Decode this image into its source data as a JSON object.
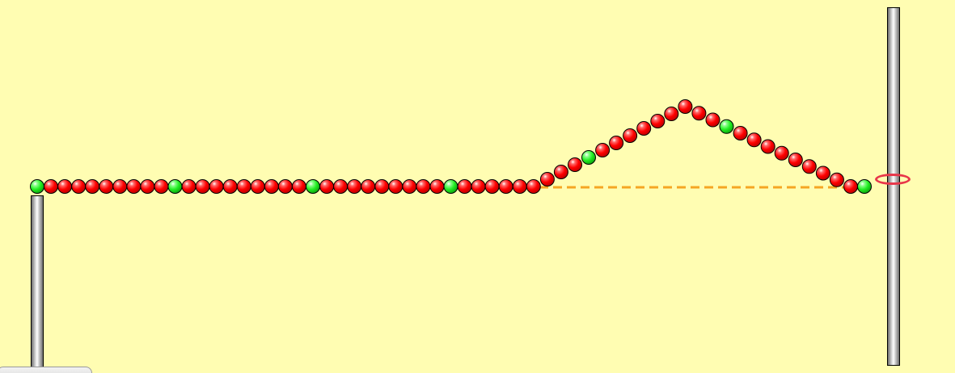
{
  "simulation": {
    "bead_count": 61,
    "highlight_every": 10,
    "colors": {
      "background": "#fffdb2",
      "bead": "#ff0000",
      "bead_highlight": "#22ee22",
      "equilibrium_line": "#f5a623",
      "ring": "#e8374a"
    },
    "pulse": {
      "shape": "triangle",
      "direction": "right",
      "start_bead": 36,
      "peak_bead": 47,
      "end_bead": 59
    },
    "left_end": "fixed-post",
    "right_end": "loose-ring-on-post"
  }
}
